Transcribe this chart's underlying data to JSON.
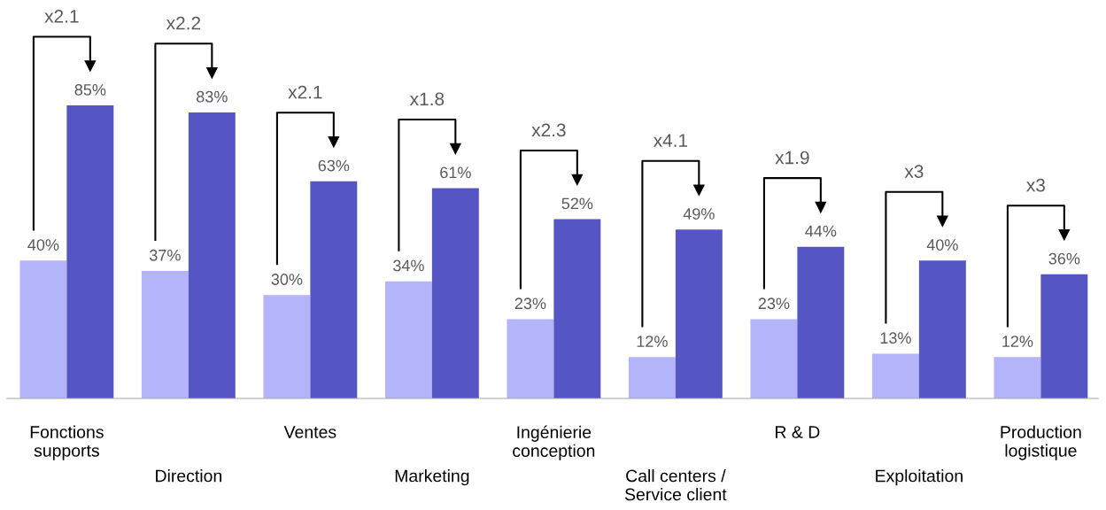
{
  "chart_data": {
    "type": "bar",
    "categories": [
      "Fonctions\nsupports",
      "Direction",
      "Ventes",
      "Marketing",
      "Ingénierie\nconception",
      "Call centers /\nService client",
      "R & D",
      "Exploitation",
      "Production\nlogistique"
    ],
    "series": [
      {
        "color": "#b4b4fa",
        "values": [
          40,
          37,
          30,
          34,
          23,
          12,
          23,
          13,
          12
        ],
        "value_labels": [
          "40%",
          "37%",
          "30%",
          "34%",
          "23%",
          "12%",
          "23%",
          "13%",
          "12%"
        ]
      },
      {
        "color": "#5555c4",
        "values": [
          85,
          83,
          63,
          61,
          52,
          49,
          44,
          40,
          36
        ],
        "value_labels": [
          "85%",
          "83%",
          "63%",
          "61%",
          "52%",
          "49%",
          "44%",
          "40%",
          "36%"
        ]
      }
    ],
    "annotations": [
      "x2.1",
      "x2.2",
      "x2.1",
      "x1.8",
      "x2.3",
      "x4.1",
      "x1.9",
      "x3",
      "x3"
    ],
    "grid": false,
    "legend": false
  }
}
